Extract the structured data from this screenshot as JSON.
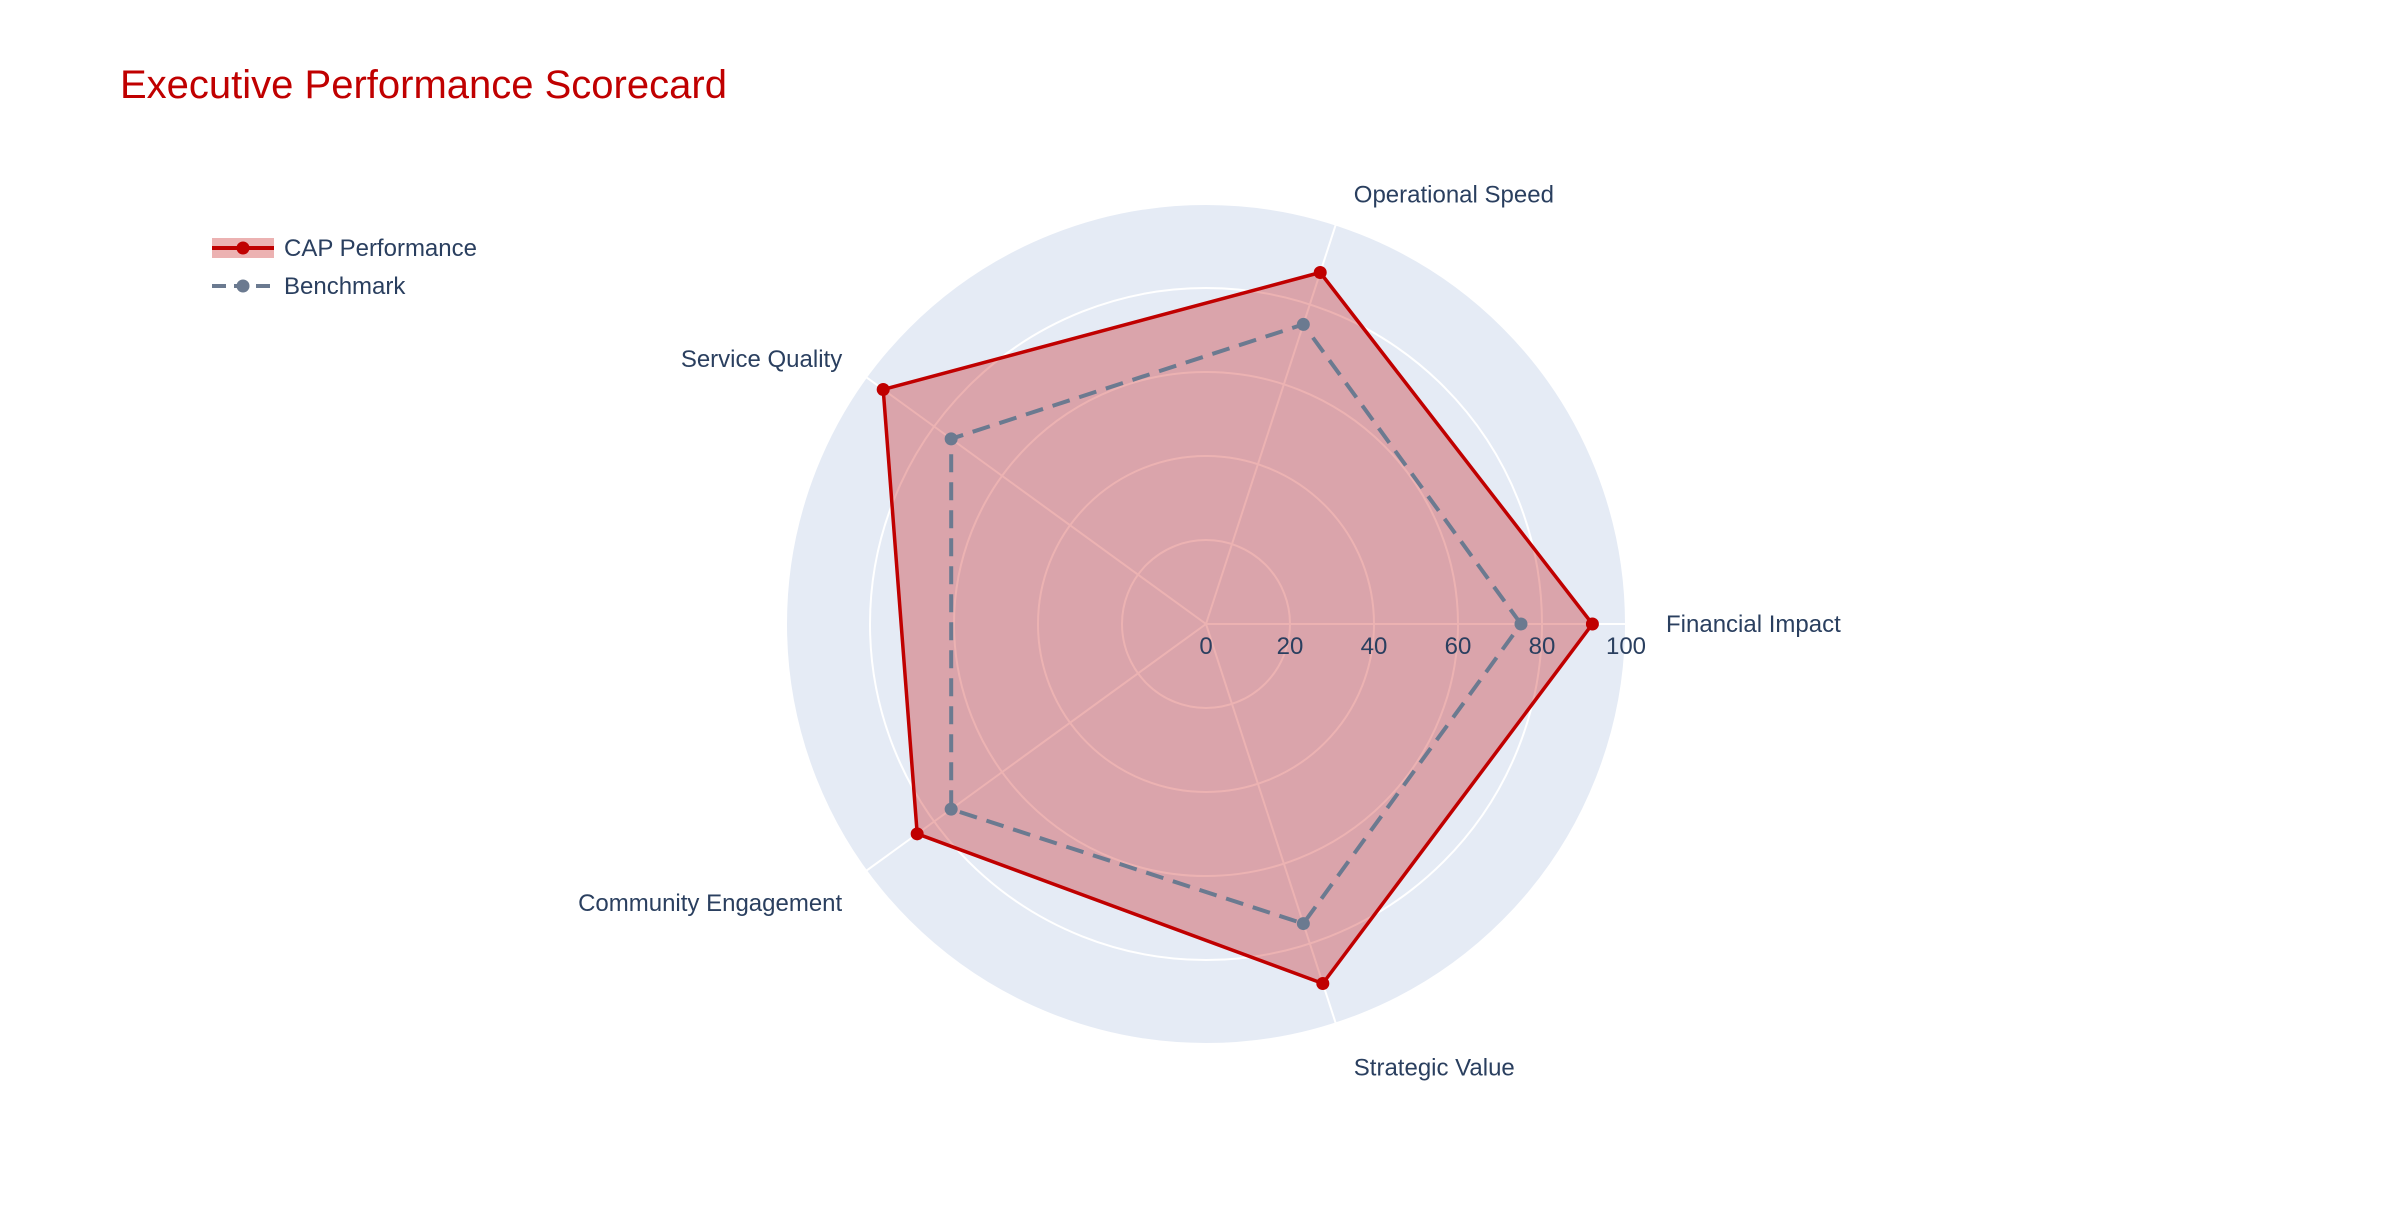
{
  "chart_data": {
    "type": "radar",
    "title": "Executive Performance Scorecard",
    "axes": [
      "Financial Impact",
      "Operational Speed",
      "Service Quality",
      "Community Engagement",
      "Strategic Value"
    ],
    "radial_range": [
      0,
      100
    ],
    "radial_ticks": [
      "0",
      "20",
      "40",
      "60",
      "80",
      "100"
    ],
    "legend_position": "top-left",
    "grid": true,
    "series": [
      {
        "name": "CAP Performance",
        "values": [
          92,
          88,
          95,
          85,
          90
        ],
        "color": "#c00000",
        "fill": "#c00000",
        "dash": "solid"
      },
      {
        "name": "Benchmark",
        "values": [
          75,
          75,
          75,
          75,
          75
        ],
        "color": "#6b7a90",
        "dash": "dashed"
      }
    ],
    "colors": {
      "title": "#c00000",
      "polar_bg": "#e5ebf5",
      "grid": "#ffffff",
      "text": "#2a3f5f"
    }
  }
}
